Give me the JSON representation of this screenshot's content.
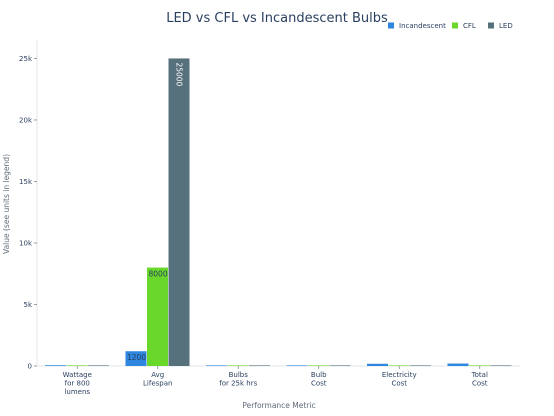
{
  "chart_data": {
    "type": "bar",
    "title": "LED vs CFL vs Incandescent Bulbs",
    "xlabel": "Performance Metric",
    "ylabel": "Value (see units in legend)",
    "categories": [
      [
        "Wattage",
        "for 800",
        "lumens"
      ],
      [
        "Avg",
        "Lifespan"
      ],
      [
        "Bulbs",
        "for 25k hrs"
      ],
      [
        "Bulb",
        "Cost"
      ],
      [
        "Electricity",
        "Cost"
      ],
      [
        "Total",
        "Cost"
      ]
    ],
    "series": [
      {
        "name": "Incandescent",
        "color": "#2e86de",
        "values": [
          60,
          1200,
          21,
          1,
          180,
          201
        ]
      },
      {
        "name": "CFL",
        "color": "#6ad82b",
        "values": [
          14,
          8000,
          3,
          2,
          42,
          48
        ]
      },
      {
        "name": "LED",
        "color": "#56707c",
        "values": [
          10,
          25000,
          1,
          4,
          30,
          34
        ]
      }
    ],
    "bar_labels": [
      {
        "series": 0,
        "category": 1,
        "text": "1200"
      },
      {
        "series": 1,
        "category": 1,
        "text": "8000"
      },
      {
        "series": 2,
        "category": 1,
        "text": "25000"
      }
    ],
    "ylim": [
      0,
      26500
    ],
    "yticks": [
      0,
      5000,
      10000,
      15000,
      20000,
      25000
    ],
    "ytick_labels": [
      "0",
      "5k",
      "10k",
      "15k",
      "20k",
      "25k"
    ],
    "grid": false,
    "legend_position": "top-right"
  }
}
